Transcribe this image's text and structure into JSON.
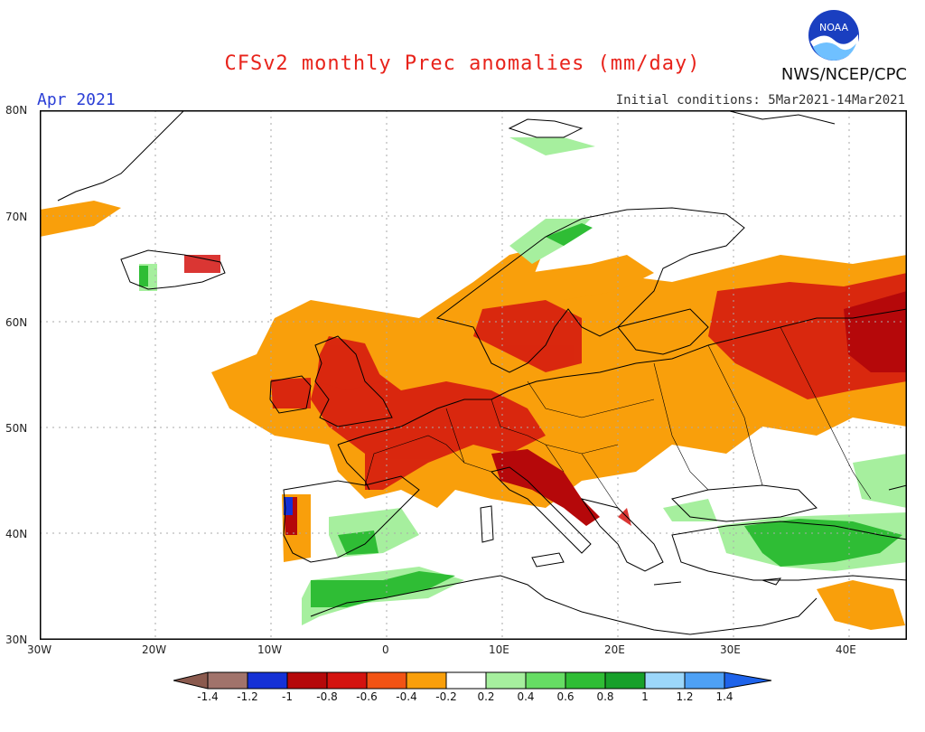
{
  "header": {
    "title": "CFSv2 monthly Prec anomalies (mm/day)",
    "month": "Apr 2021",
    "org": "NWS/NCEP/CPC",
    "initial_conditions": "Initial conditions: 5Mar2021-14Mar2021",
    "logo_text": "NOAA"
  },
  "axes": {
    "lat_labels": [
      "80N",
      "70N",
      "60N",
      "50N",
      "40N",
      "30N"
    ],
    "lon_labels": [
      "30W",
      "20W",
      "10W",
      "0",
      "10E",
      "20E",
      "30E",
      "40E"
    ]
  },
  "legend": {
    "labels": [
      "-1.4",
      "-1.2",
      "-1",
      "-0.8",
      "-0.6",
      "-0.4",
      "-0.2",
      "0.2",
      "0.4",
      "0.6",
      "0.8",
      "1",
      "1.2",
      "1.4"
    ],
    "colors": [
      "#8b5a4e",
      "#a1736b",
      "#1531d6",
      "#b5080a",
      "#d4130f",
      "#f25314",
      "#f99f0b",
      "#ffffff",
      "#a6ef9e",
      "#66dd64",
      "#2fbd35",
      "#17a02a",
      "#9cd7fa",
      "#4ea1f5",
      "#1e63ea"
    ]
  },
  "map_colors": {
    "land_line": "#000000",
    "grid": "#aaaaaa"
  }
}
